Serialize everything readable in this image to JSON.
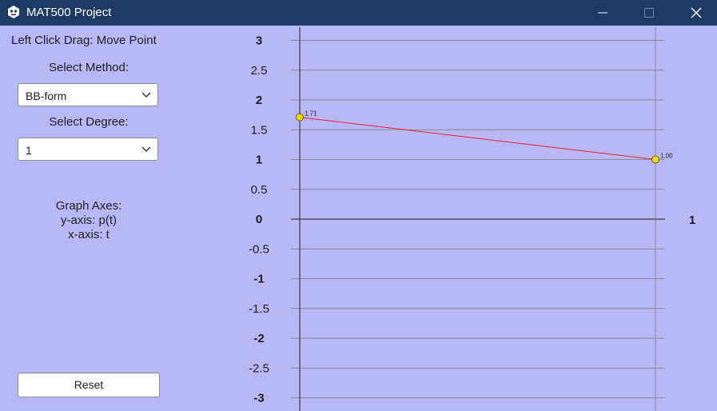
{
  "window": {
    "title": "MAT500 Project"
  },
  "panel": {
    "hint": "Left Click Drag: Move Point",
    "method_label": "Select Method:",
    "method_value": "BB-form",
    "degree_label": "Select Degree:",
    "degree_value": "1",
    "axes_title": "Graph Axes:",
    "y_axis_info": "y-axis: p(t)",
    "x_axis_info": "x-axis: t",
    "reset_label": "Reset"
  },
  "icons": [
    "app-icon",
    "minimize-icon",
    "maximize-icon",
    "close-icon",
    "chevron-down-icon"
  ],
  "colors": {
    "background": "#b8b8f7",
    "titlebar": "#1c3a64",
    "curve": "#e8202a",
    "point_fill": "#ffd700",
    "grid": "#7d7d7d"
  },
  "chart_data": {
    "type": "line",
    "x_ticks": [
      "1"
    ],
    "y_ticks": [
      "3",
      "2.5",
      "2",
      "1.5",
      "1",
      "0.5",
      "0",
      "-0.5",
      "-1",
      "-1.5",
      "-2",
      "-2.5",
      "-3"
    ],
    "xlim": [
      0,
      1
    ],
    "ylim": [
      -3,
      3
    ],
    "control_points": [
      {
        "t": 0,
        "y": 1.71,
        "label": "1.71"
      },
      {
        "t": 1,
        "y": 1.0,
        "label": "1.00"
      }
    ],
    "grid": true
  }
}
